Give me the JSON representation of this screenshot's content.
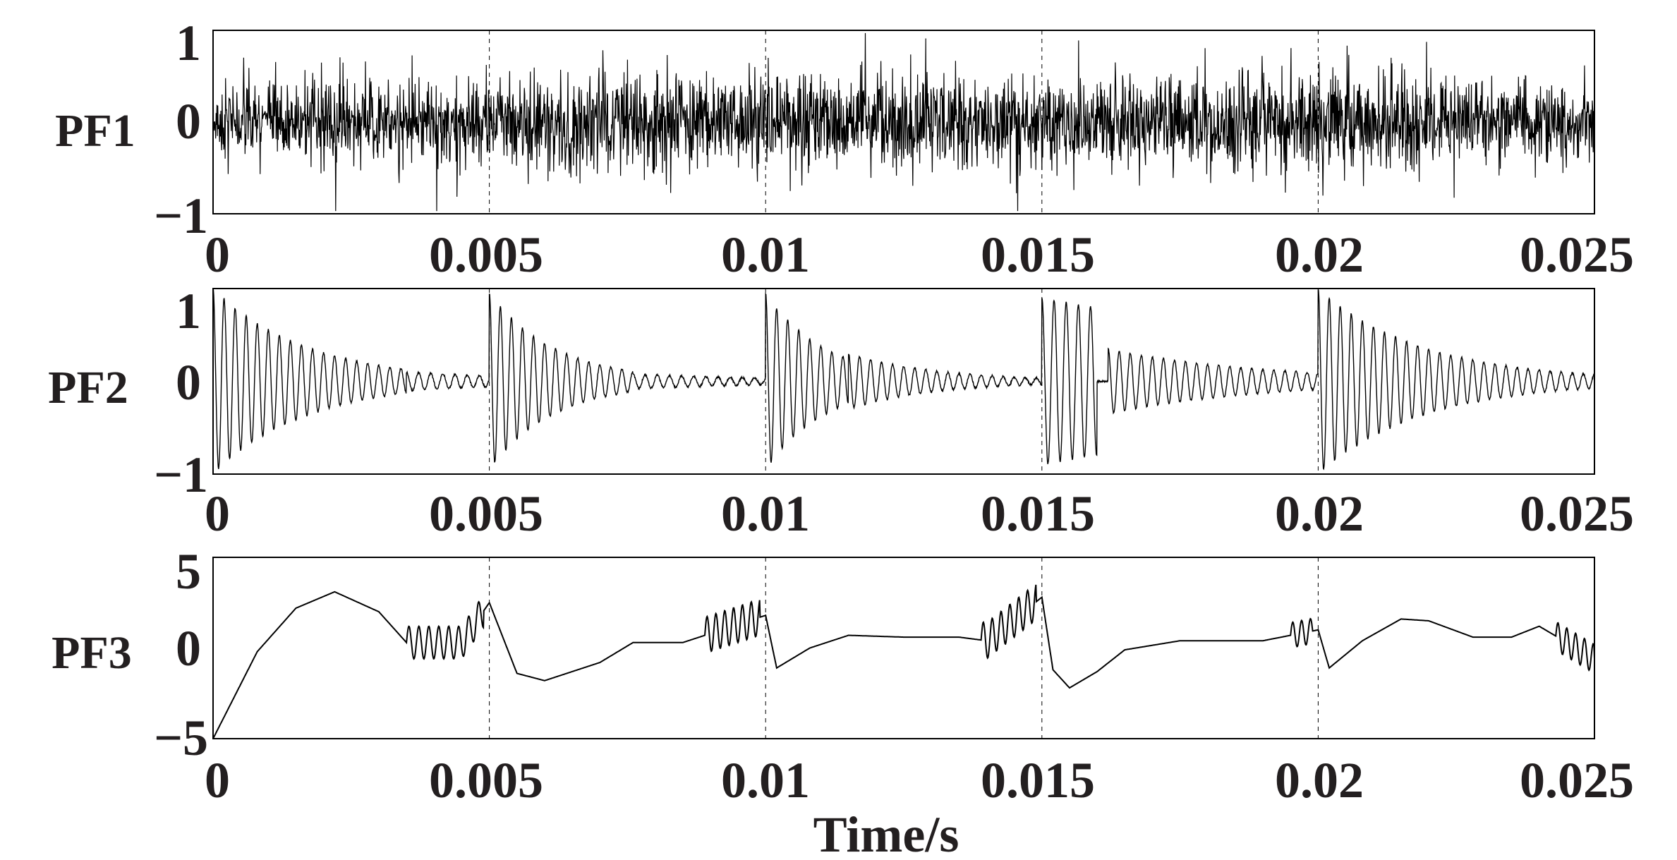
{
  "chart_data": [
    {
      "type": "line",
      "ylabel": "PF1",
      "xlabel": "",
      "xlim": [
        0,
        0.025
      ],
      "ylim": [
        -1,
        1
      ],
      "x_ticks": [
        "0",
        "0.005",
        "0.01",
        "0.015",
        "0.02",
        "0.025"
      ],
      "y_ticks": [
        "1",
        "0",
        "−1"
      ],
      "grid": "vertical dashed at x ticks",
      "color": "#000000",
      "series": [
        {
          "style": "dense broadband noise",
          "x": [
            0,
            0.0025,
            0.005,
            0.0075,
            0.01,
            0.0125,
            0.015,
            0.0175,
            0.02,
            0.0225,
            0.025
          ],
          "values": [
            0.35,
            -0.45,
            0.5,
            -0.55,
            0.4,
            -0.6,
            0.45,
            -0.5,
            0.55,
            -0.45,
            0.3
          ],
          "envelope": [
            0.5,
            0.55,
            0.6,
            0.65,
            0.55,
            0.6,
            0.6,
            0.55,
            0.7,
            0.55,
            0.5
          ]
        }
      ]
    },
    {
      "type": "line",
      "ylabel": "PF2",
      "xlabel": "",
      "xlim": [
        0,
        0.025
      ],
      "ylim": [
        -1,
        1
      ],
      "x_ticks": [
        "0",
        "0.005",
        "0.01",
        "0.015",
        "0.02",
        "0.025"
      ],
      "y_ticks": [
        "1",
        "0",
        "−1"
      ],
      "grid": "vertical dashed at x ticks",
      "color": "#000000",
      "series": [
        {
          "style": "decaying oscillation bursts",
          "bursts": [
            {
              "start": 0.0,
              "amplitude": 1.0,
              "decay_ms": 1.7,
              "period_ms": 0.2,
              "end": 0.0035
            },
            {
              "start": 0.0035,
              "amplitude": 0.1,
              "decay_ms": 3.0,
              "period_ms": 0.22,
              "end": 0.005
            },
            {
              "start": 0.005,
              "amplitude": 0.95,
              "decay_ms": 1.2,
              "period_ms": 0.2,
              "end": 0.0076
            },
            {
              "start": 0.0076,
              "amplitude": 0.08,
              "decay_ms": 3.0,
              "period_ms": 0.22,
              "end": 0.01
            },
            {
              "start": 0.01,
              "amplitude": 0.95,
              "decay_ms": 1.1,
              "period_ms": 0.2,
              "end": 0.0115
            },
            {
              "start": 0.0115,
              "amplitude": 0.3,
              "decay_ms": 1.6,
              "period_ms": 0.2,
              "end": 0.015
            },
            {
              "start": 0.015,
              "amplitude": 0.9,
              "decay_ms": 8.0,
              "period_ms": 0.22,
              "end": 0.016
            },
            {
              "start": 0.0162,
              "amplitude": 0.35,
              "decay_ms": 2.8,
              "period_ms": 0.2,
              "end": 0.02
            },
            {
              "start": 0.02,
              "amplitude": 1.0,
              "decay_ms": 1.9,
              "period_ms": 0.2,
              "end": 0.025
            }
          ]
        }
      ]
    },
    {
      "type": "line",
      "ylabel": "PF3",
      "xlabel": "Time/s",
      "xlim": [
        0,
        0.025
      ],
      "ylim": [
        -5,
        5
      ],
      "x_ticks": [
        "0",
        "0.005",
        "0.01",
        "0.015",
        "0.02",
        "0.025"
      ],
      "y_ticks": [
        "5",
        "0",
        "−5"
      ],
      "grid": "vertical dashed at x ticks",
      "color": "#000000",
      "series": [
        {
          "style": "smooth baseline with oscillation bursts",
          "x": [
            0,
            0.0008,
            0.0015,
            0.0022,
            0.003,
            0.0035,
            0.0045,
            0.005,
            0.0055,
            0.006,
            0.007,
            0.0076,
            0.008,
            0.0085,
            0.01,
            0.0102,
            0.0108,
            0.0115,
            0.0125,
            0.0135,
            0.014,
            0.015,
            0.0152,
            0.0155,
            0.016,
            0.0165,
            0.0175,
            0.019,
            0.02,
            0.0202,
            0.0208,
            0.0215,
            0.022,
            0.0228,
            0.0235,
            0.024,
            0.025
          ],
          "values": [
            -5.0,
            -0.2,
            2.2,
            3.1,
            2.0,
            0.3,
            0.3,
            2.5,
            -1.4,
            -1.8,
            -0.8,
            0.3,
            0.3,
            0.3,
            1.8,
            -1.1,
            0.0,
            0.7,
            0.6,
            0.6,
            0.4,
            2.8,
            -1.2,
            -2.2,
            -1.3,
            -0.1,
            0.4,
            0.4,
            1.0,
            -1.1,
            0.4,
            1.6,
            1.5,
            0.6,
            0.6,
            1.2,
            -0.6
          ],
          "bursts": [
            {
              "start": 0.0035,
              "end": 0.0049,
              "amplitude": 0.9,
              "period_ms": 0.18
            },
            {
              "start": 0.0089,
              "end": 0.0099,
              "amplitude": 1.0,
              "period_ms": 0.16
            },
            {
              "start": 0.0139,
              "end": 0.0149,
              "amplitude": 1.0,
              "period_ms": 0.16
            },
            {
              "start": 0.0195,
              "end": 0.0199,
              "amplitude": 0.7,
              "period_ms": 0.16
            },
            {
              "start": 0.0243,
              "end": 0.025,
              "amplitude": 0.8,
              "period_ms": 0.16
            }
          ]
        }
      ]
    }
  ]
}
